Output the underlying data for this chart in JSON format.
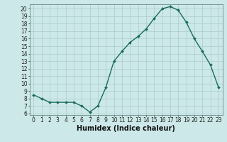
{
  "x": [
    0,
    1,
    2,
    3,
    4,
    5,
    6,
    7,
    8,
    9,
    10,
    11,
    12,
    13,
    14,
    15,
    16,
    17,
    18,
    19,
    20,
    21,
    22,
    23
  ],
  "y": [
    8.5,
    8.0,
    7.5,
    7.5,
    7.5,
    7.5,
    7.0,
    6.2,
    7.0,
    9.5,
    13.0,
    14.3,
    15.5,
    16.3,
    17.3,
    18.7,
    20.0,
    20.3,
    19.8,
    18.2,
    16.0,
    14.3,
    12.5,
    9.5
  ],
  "line_color": "#1a6b5e",
  "marker": "D",
  "marker_size": 2.0,
  "bg_color": "#cce8e8",
  "grid_color": "#aacccc",
  "xlabel": "Humidex (Indice chaleur)",
  "xlim": [
    -0.5,
    23.5
  ],
  "ylim": [
    5.8,
    20.6
  ],
  "yticks": [
    6,
    7,
    8,
    9,
    10,
    11,
    12,
    13,
    14,
    15,
    16,
    17,
    18,
    19,
    20
  ],
  "xticks": [
    0,
    1,
    2,
    3,
    4,
    5,
    6,
    7,
    8,
    9,
    10,
    11,
    12,
    13,
    14,
    15,
    16,
    17,
    18,
    19,
    20,
    21,
    22,
    23
  ],
  "xtick_labels": [
    "0",
    "1",
    "2",
    "3",
    "4",
    "5",
    "6",
    "7",
    "8",
    "9",
    "10",
    "11",
    "12",
    "13",
    "14",
    "15",
    "16",
    "17",
    "18",
    "19",
    "20",
    "21",
    "22",
    "23"
  ],
  "tick_fontsize": 5.5,
  "xlabel_fontsize": 7.0,
  "line_width": 1.0
}
